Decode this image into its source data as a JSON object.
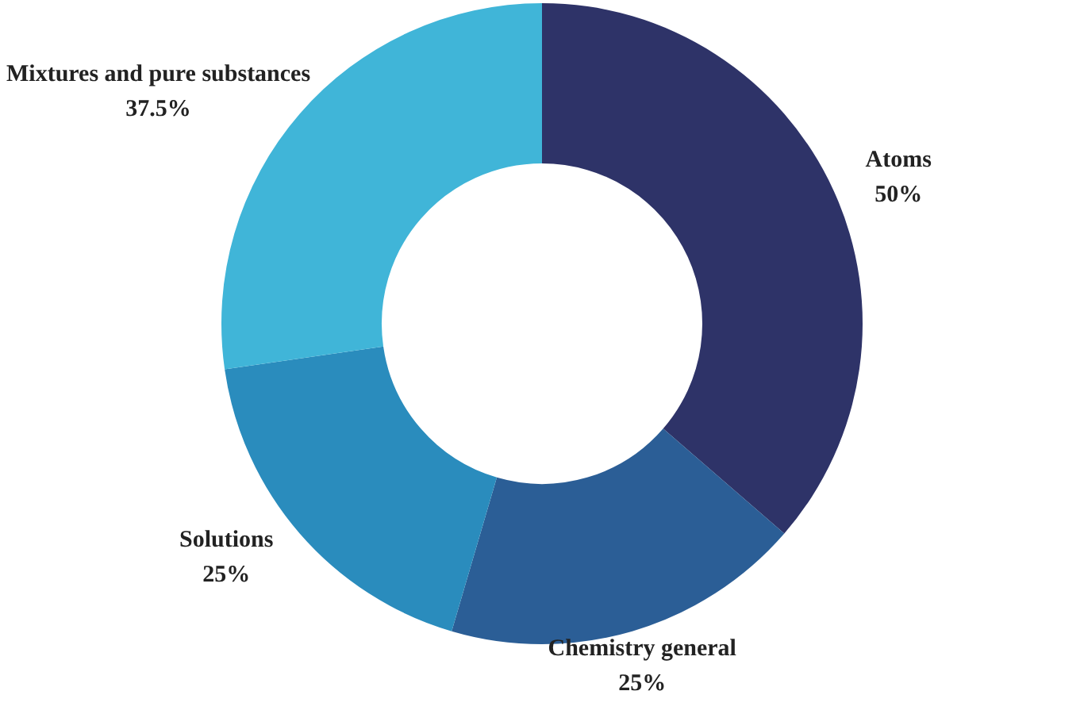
{
  "chart_data": {
    "type": "donut",
    "categories": [
      "Atoms",
      "Chemistry general",
      "Solutions",
      "Mixtures and pure substances"
    ],
    "values": [
      50,
      25,
      25,
      37.5
    ],
    "value_labels": [
      "50%",
      "25%",
      "25%",
      "37.5%"
    ],
    "colors": [
      "#2e3368",
      "#2b5e96",
      "#2a8cbd",
      "#40b5d8"
    ],
    "legend": false
  }
}
